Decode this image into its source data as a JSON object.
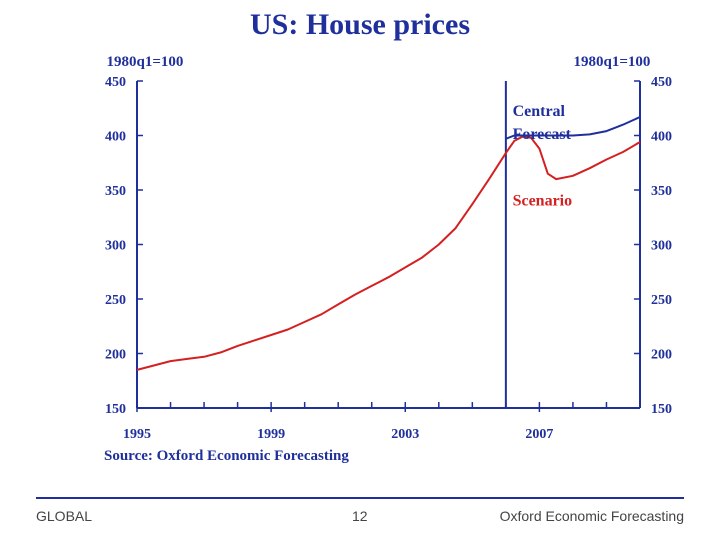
{
  "slide": {
    "title": "US: House prices",
    "source": "Source: Oxford Economic Forecasting",
    "footer_left": "GLOBAL",
    "footer_center": "12",
    "footer_right": "Oxford Economic Forecasting"
  },
  "colors": {
    "axis": "#1f2f9b",
    "central": "#1f2f9b",
    "scenario": "#d42020",
    "text": "#1f2f9b"
  },
  "chart_data": {
    "type": "line",
    "left_axis_label": "1980q1=100",
    "right_axis_label": "1980q1=100",
    "ylim": [
      150,
      450
    ],
    "y_ticks": [
      150,
      200,
      250,
      300,
      350,
      400,
      450
    ],
    "xlim": [
      1995.0,
      2010.0
    ],
    "x_ticks": [
      1995,
      1999,
      2003,
      2007
    ],
    "x_ticks_minor": [
      1996,
      1997,
      1998,
      2000,
      2001,
      2002,
      2004,
      2005,
      2006,
      2008,
      2009
    ],
    "forecast_start": 2006.0,
    "series": [
      {
        "name": "Scenario",
        "key": "scenario",
        "x": [
          1995.0,
          1995.5,
          1996.0,
          1996.5,
          1997.0,
          1997.5,
          1998.0,
          1998.5,
          1999.0,
          1999.5,
          2000.0,
          2000.5,
          2001.0,
          2001.5,
          2002.0,
          2002.5,
          2003.0,
          2003.5,
          2004.0,
          2004.5,
          2005.0,
          2005.5,
          2006.0,
          2006.25,
          2006.5,
          2006.75,
          2007.0,
          2007.25,
          2007.5,
          2008.0,
          2008.5,
          2009.0,
          2009.5,
          2010.0
        ],
        "y": [
          185,
          189,
          193,
          195,
          197,
          201,
          207,
          212,
          217,
          222,
          229,
          236,
          245,
          254,
          262,
          270,
          279,
          288,
          300,
          315,
          337,
          360,
          384,
          395,
          399,
          398,
          388,
          365,
          360,
          363,
          370,
          378,
          385,
          394
        ]
      },
      {
        "name": "Central Forecast",
        "key": "central",
        "x": [
          2006.0,
          2006.25,
          2006.5,
          2007.0,
          2007.5,
          2008.0,
          2008.5,
          2009.0,
          2009.5,
          2010.0
        ],
        "y": [
          397,
          400,
          400,
          400,
          400,
          400,
          401,
          404,
          410,
          417
        ]
      }
    ],
    "annotations": [
      {
        "key": "central_label",
        "lines": [
          "Central",
          "Forecast"
        ],
        "x": 2006.2,
        "y": 418
      },
      {
        "key": "scenario_label",
        "lines": [
          "Scenario"
        ],
        "x": 2006.2,
        "y": 336
      }
    ]
  }
}
